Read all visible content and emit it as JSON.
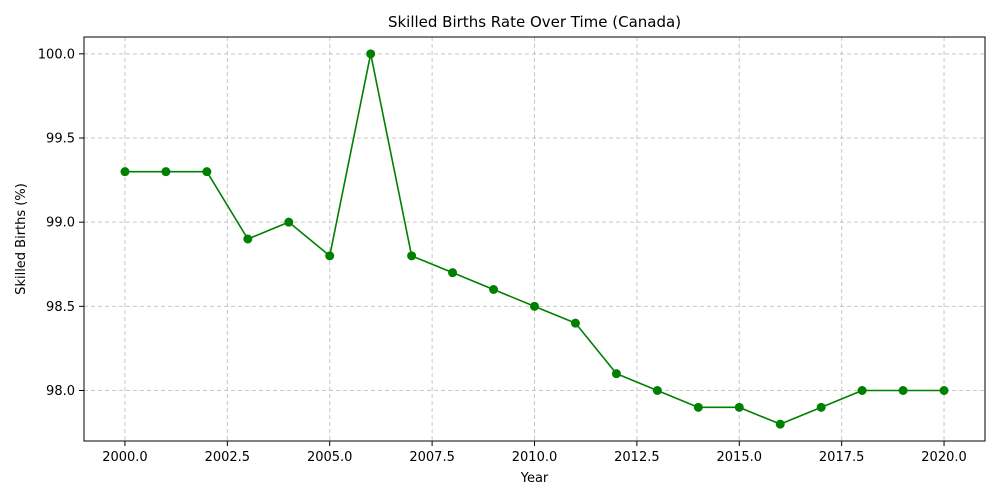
{
  "chart_data": {
    "type": "line",
    "title": "Skilled Births Rate Over Time (Canada)",
    "xlabel": "Year",
    "ylabel": "Skilled Births (%)",
    "xlim": [
      1999.0,
      2021.0
    ],
    "ylim": [
      97.7,
      100.1
    ],
    "x_ticks": [
      2000.0,
      2002.5,
      2005.0,
      2007.5,
      2010.0,
      2012.5,
      2015.0,
      2017.5,
      2020.0
    ],
    "x_tick_labels": [
      "2000.0",
      "2002.5",
      "2005.0",
      "2007.5",
      "2010.0",
      "2012.5",
      "2015.0",
      "2017.5",
      "2020.0"
    ],
    "y_ticks": [
      98.0,
      98.5,
      99.0,
      99.5,
      100.0
    ],
    "y_tick_labels": [
      "98.0",
      "98.5",
      "99.0",
      "99.5",
      "100.0"
    ],
    "grid": true,
    "legend": null,
    "series": [
      {
        "color": "#008000",
        "marker": "circle",
        "x": [
          2000,
          2001,
          2002,
          2003,
          2004,
          2005,
          2006,
          2007,
          2008,
          2009,
          2010,
          2011,
          2012,
          2013,
          2014,
          2015,
          2016,
          2017,
          2018,
          2019,
          2020
        ],
        "values": [
          99.3,
          99.3,
          99.3,
          98.9,
          99.0,
          98.8,
          100.0,
          98.8,
          98.7,
          98.6,
          98.5,
          98.4,
          98.1,
          98.0,
          97.9,
          97.9,
          97.8,
          97.9,
          98.0,
          98.0,
          98.0
        ]
      }
    ]
  }
}
